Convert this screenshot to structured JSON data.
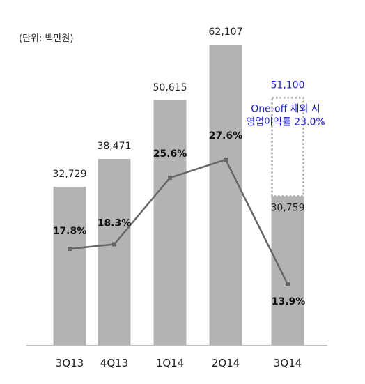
{
  "unit_label": "(단위: 백만원)",
  "chart_data": {
    "type": "bar",
    "categories": [
      "3Q13",
      "4Q13",
      "1Q14",
      "2Q14",
      "3Q14"
    ],
    "series": [
      {
        "name": "",
        "type": "bar",
        "values": [
          32729,
          38471,
          50615,
          62107,
          30759
        ],
        "labels": [
          "32,729",
          "38,471",
          "50,615",
          "62,107",
          "30,759"
        ]
      },
      {
        "name": "",
        "type": "line",
        "values": [
          17.8,
          18.3,
          25.6,
          27.6,
          13.9
        ],
        "labels": [
          "17.8%",
          "18.3%",
          "25.6%",
          "27.6%",
          "13.9%"
        ]
      }
    ],
    "annotation": {
      "category": "3Q14",
      "dashed_bar_value": 51100,
      "value_label": "51,100",
      "lines": [
        "One-off 제외 시",
        "영업이익률 23.0%"
      ],
      "color": "#1a1ae6"
    },
    "colors": {
      "bar": "#b3b3b3",
      "line": "#666666",
      "dashed": "#a6a6a6"
    }
  }
}
